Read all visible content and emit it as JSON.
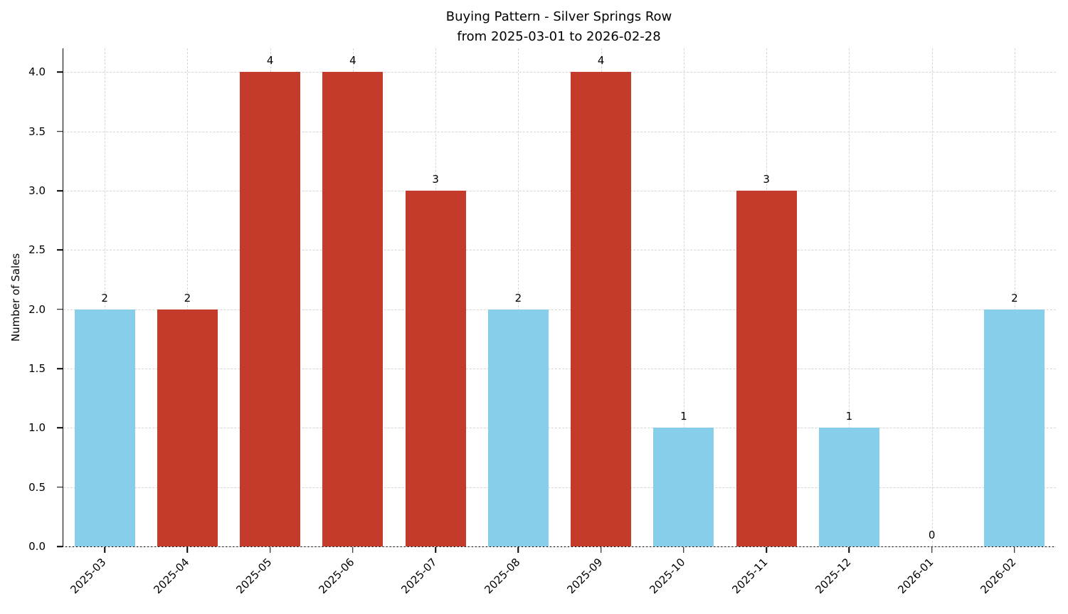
{
  "chart_data": {
    "type": "bar",
    "title": "Buying Pattern - Silver Springs Row",
    "subtitle": "from 2025-03-01 to 2026-02-28",
    "ylabel": "Number of Sales",
    "xlabel": "",
    "categories": [
      "2025-03",
      "2025-04",
      "2025-05",
      "2025-06",
      "2025-07",
      "2025-08",
      "2025-09",
      "2025-10",
      "2025-11",
      "2025-12",
      "2026-01",
      "2026-02"
    ],
    "values": [
      2,
      2,
      4,
      4,
      3,
      2,
      4,
      1,
      3,
      1,
      0,
      2
    ],
    "bar_colors": [
      "#87ceeb",
      "#c43a2b",
      "#c43a2b",
      "#c43a2b",
      "#c43a2b",
      "#87ceeb",
      "#c43a2b",
      "#87ceeb",
      "#c43a2b",
      "#87ceeb",
      "#87ceeb",
      "#87ceeb"
    ],
    "value_labels": [
      "2",
      "2",
      "4",
      "4",
      "3",
      "2",
      "4",
      "1",
      "3",
      "1",
      "0",
      "2"
    ],
    "ylim": [
      0,
      4.2
    ],
    "yticks": [
      0,
      0.5,
      1,
      1.5,
      2,
      2.5,
      3,
      3.5,
      4
    ],
    "grid": true,
    "grid_style": "dashed",
    "legend": false
  }
}
